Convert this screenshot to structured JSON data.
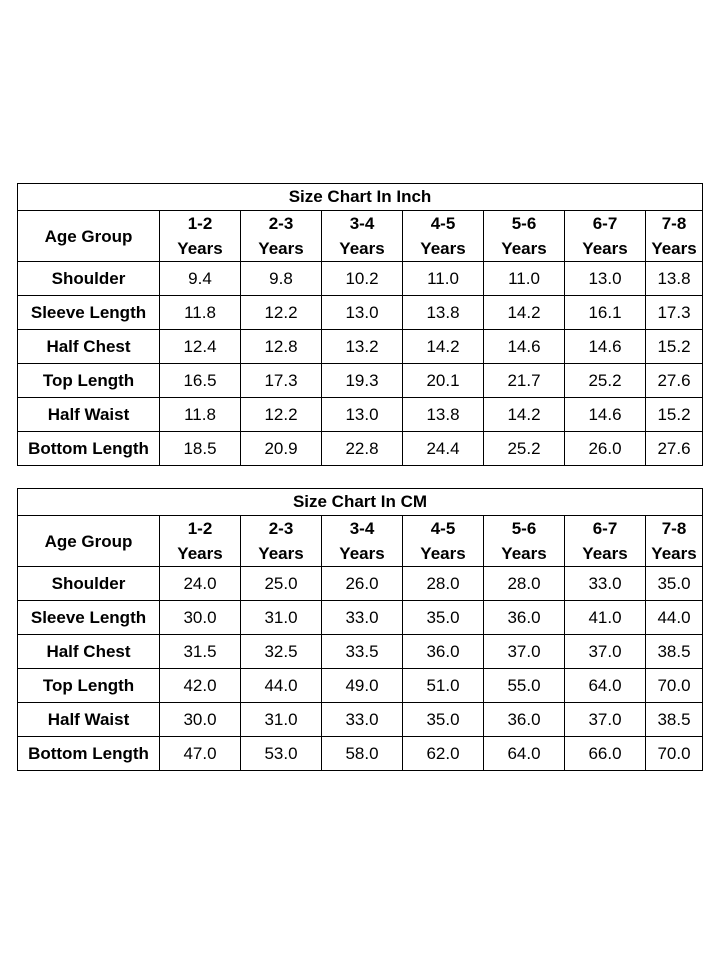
{
  "tables": [
    {
      "title": "Size Chart In Inch",
      "header_label": "Age Group",
      "columns": [
        {
          "range": "1-2",
          "unit": "Years"
        },
        {
          "range": "2-3",
          "unit": "Years"
        },
        {
          "range": "3-4",
          "unit": "Years"
        },
        {
          "range": "4-5",
          "unit": "Years"
        },
        {
          "range": "5-6",
          "unit": "Years"
        },
        {
          "range": "6-7",
          "unit": "Years"
        },
        {
          "range": "7-8",
          "unit": "Years"
        }
      ],
      "rows": [
        {
          "label": "Shoulder",
          "values": [
            "9.4",
            "9.8",
            "10.2",
            "11.0",
            "11.0",
            "13.0",
            "13.8"
          ]
        },
        {
          "label": "Sleeve Length",
          "values": [
            "11.8",
            "12.2",
            "13.0",
            "13.8",
            "14.2",
            "16.1",
            "17.3"
          ]
        },
        {
          "label": "Half Chest",
          "values": [
            "12.4",
            "12.8",
            "13.2",
            "14.2",
            "14.6",
            "14.6",
            "15.2"
          ]
        },
        {
          "label": "Top Length",
          "values": [
            "16.5",
            "17.3",
            "19.3",
            "20.1",
            "21.7",
            "25.2",
            "27.6"
          ]
        },
        {
          "label": "Half Waist",
          "values": [
            "11.8",
            "12.2",
            "13.0",
            "13.8",
            "14.2",
            "14.6",
            "15.2"
          ]
        },
        {
          "label": "Bottom Length",
          "values": [
            "18.5",
            "20.9",
            "22.8",
            "24.4",
            "25.2",
            "26.0",
            "27.6"
          ]
        }
      ]
    },
    {
      "title": "Size Chart In CM",
      "header_label": "Age Group",
      "columns": [
        {
          "range": "1-2",
          "unit": "Years"
        },
        {
          "range": "2-3",
          "unit": "Years"
        },
        {
          "range": "3-4",
          "unit": "Years"
        },
        {
          "range": "4-5",
          "unit": "Years"
        },
        {
          "range": "5-6",
          "unit": "Years"
        },
        {
          "range": "6-7",
          "unit": "Years"
        },
        {
          "range": "7-8",
          "unit": "Years"
        }
      ],
      "rows": [
        {
          "label": "Shoulder",
          "values": [
            "24.0",
            "25.0",
            "26.0",
            "28.0",
            "28.0",
            "33.0",
            "35.0"
          ]
        },
        {
          "label": "Sleeve Length",
          "values": [
            "30.0",
            "31.0",
            "33.0",
            "35.0",
            "36.0",
            "41.0",
            "44.0"
          ]
        },
        {
          "label": "Half Chest",
          "values": [
            "31.5",
            "32.5",
            "33.5",
            "36.0",
            "37.0",
            "37.0",
            "38.5"
          ]
        },
        {
          "label": "Top Length",
          "values": [
            "42.0",
            "44.0",
            "49.0",
            "51.0",
            "55.0",
            "64.0",
            "70.0"
          ]
        },
        {
          "label": "Half Waist",
          "values": [
            "30.0",
            "31.0",
            "33.0",
            "35.0",
            "36.0",
            "37.0",
            "38.5"
          ]
        },
        {
          "label": "Bottom Length",
          "values": [
            "47.0",
            "53.0",
            "58.0",
            "62.0",
            "64.0",
            "66.0",
            "70.0"
          ]
        }
      ]
    }
  ]
}
